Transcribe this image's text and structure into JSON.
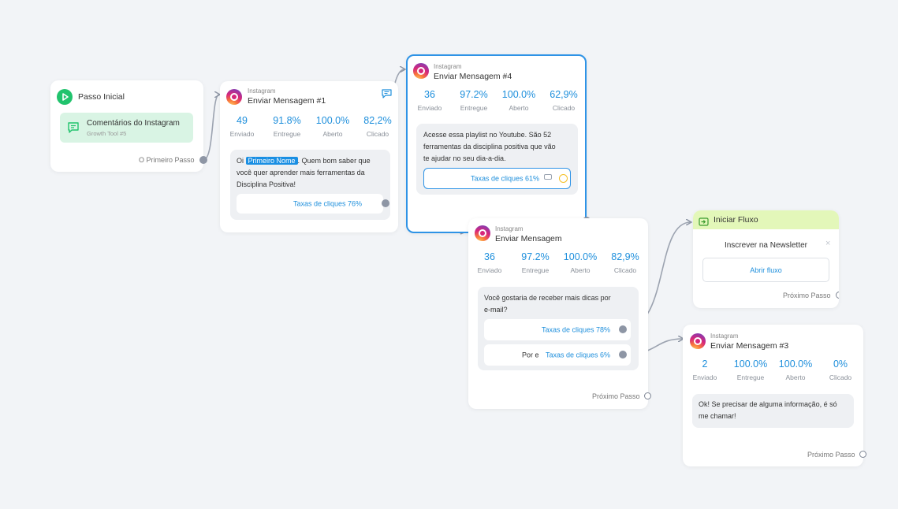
{
  "colors": {
    "accent": "#1e8fdc",
    "selected_border": "#2e93e6",
    "start_green": "#21c36d",
    "flow_green": "#e3f7b9",
    "canvas": "#f2f4f7"
  },
  "start_node": {
    "title": "Passo Inicial",
    "trigger": {
      "title": "Comentários do Instagram",
      "subtitle": "Growth Tool #5",
      "icon": "comment-icon"
    },
    "step_label": "O Primeiro Passo"
  },
  "msg1": {
    "source": "Instagram",
    "title": "Enviar Mensagem #1",
    "stats": [
      {
        "value": "49",
        "label": "Enviado"
      },
      {
        "value": "91.8%",
        "label": "Entregue"
      },
      {
        "value": "100.0%",
        "label": "Aberto"
      },
      {
        "value": "82,2%",
        "label": "Clicado"
      }
    ],
    "text_prefix": "Oi ",
    "placeholder": "Primeiro Nome",
    "text_line1_rest": ". Quem bom saber que",
    "text_line2": "você quer aprender mais ferramentas da",
    "text_line3": "Disciplina Positiva!",
    "button_label": "Taxas de cliques 76%"
  },
  "msg4": {
    "source": "Instagram",
    "title": "Enviar Mensagem #4",
    "stats": [
      {
        "value": "36",
        "label": "Enviado"
      },
      {
        "value": "97.2%",
        "label": "Entregue"
      },
      {
        "value": "100.0%",
        "label": "Aberto"
      },
      {
        "value": "62,9%",
        "label": "Clicado"
      }
    ],
    "text_line1": "Acesse essa playlist no Youtube. São 52",
    "text_line2": "ferramentas da disciplina positiva que vão",
    "text_line3": "te ajudar no seu dia-a-dia.",
    "button_label": "Taxas de cliques 61%"
  },
  "msg": {
    "source": "Instagram",
    "title": "Enviar Mensagem",
    "stats": [
      {
        "value": "36",
        "label": "Enviado"
      },
      {
        "value": "97.2%",
        "label": "Entregue"
      },
      {
        "value": "100.0%",
        "label": "Aberto"
      },
      {
        "value": "82,9%",
        "label": "Clicado"
      }
    ],
    "text_line1": "Você gostaria de receber mais dicas por",
    "text_line2": "e-mail?",
    "button1_label": "Taxas de cliques 78%",
    "button2_prefix": "Por e",
    "button2_label": "Taxas de cliques 6%",
    "next_label": "Próximo Passo"
  },
  "flow": {
    "title": "Iniciar Fluxo",
    "subtitle": "Inscrever na Newsletter",
    "button_label": "Abrir fluxo",
    "next_label": "Próximo Passo"
  },
  "msg3": {
    "source": "Instagram",
    "title": "Enviar Mensagem #3",
    "stats": [
      {
        "value": "2",
        "label": "Enviado"
      },
      {
        "value": "100.0%",
        "label": "Entregue"
      },
      {
        "value": "100.0%",
        "label": "Aberto"
      },
      {
        "value": "0%",
        "label": "Clicado"
      }
    ],
    "text_line1": "Ok! Se precisar de alguma informação, é só",
    "text_line2": "me chamar!",
    "next_label": "Próximo Passo"
  }
}
